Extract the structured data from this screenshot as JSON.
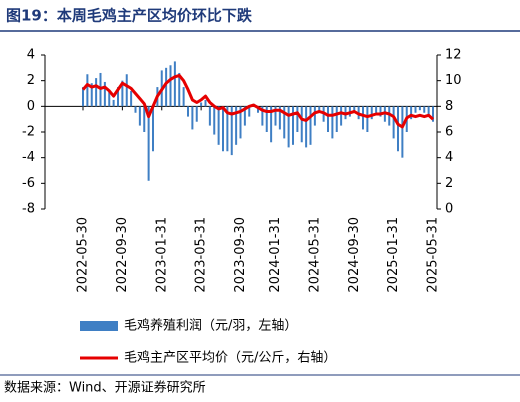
{
  "title": "图19：本周毛鸡主产区均价环比下跌",
  "source": "数据来源：Wind、开源证券研究所",
  "chart_data": {
    "type": "bar-line",
    "categories": [
      "2022-05-30",
      null,
      null,
      null,
      null,
      null,
      null,
      null,
      null,
      "2022-09-30",
      null,
      null,
      null,
      null,
      null,
      null,
      null,
      null,
      "2023-01-31",
      null,
      null,
      null,
      null,
      null,
      null,
      null,
      null,
      "2023-05-31",
      null,
      null,
      null,
      null,
      null,
      null,
      null,
      null,
      "2023-09-30",
      null,
      null,
      null,
      null,
      null,
      null,
      null,
      "2024-01-31",
      null,
      null,
      null,
      null,
      null,
      null,
      null,
      null,
      "2024-05-31",
      null,
      null,
      null,
      null,
      null,
      null,
      null,
      null,
      "2024-09-30",
      null,
      null,
      null,
      null,
      null,
      null,
      null,
      null,
      "2025-01-31",
      null,
      null,
      null,
      null,
      null,
      null,
      null,
      null,
      "2025-05-31"
    ],
    "series": [
      {
        "name": "毛鸡养殖利润（元/羽，左轴）",
        "color": "#3f7fc4",
        "type": "bar",
        "axis": "y",
        "values": [
          1.5,
          2.5,
          1.8,
          2.2,
          2.6,
          1.9,
          1.2,
          0.5,
          1.5,
          2.0,
          2.5,
          1.2,
          -0.5,
          -1.5,
          -2.0,
          -5.8,
          -3.5,
          1.5,
          2.8,
          3.0,
          3.2,
          3.5,
          2.6,
          1.5,
          -0.8,
          -1.8,
          -1.2,
          0.3,
          0.5,
          -1.5,
          -2.2,
          -3.0,
          -3.5,
          -3.5,
          -3.8,
          -3.0,
          -2.5,
          -1.5,
          -0.8,
          0.2,
          -0.5,
          -1.5,
          -2.0,
          -2.8,
          -1.5,
          -1.8,
          -2.5,
          -3.2,
          -3.0,
          -2.0,
          -2.8,
          -3.2,
          -3.0,
          -1.5,
          -0.5,
          -1.2,
          -2.0,
          -2.5,
          -2.0,
          -1.5,
          -1.0,
          -0.8,
          -0.5,
          -1.0,
          -1.8,
          -2.0,
          -1.0,
          -0.5,
          -0.8,
          -1.2,
          -1.5,
          -2.5,
          -3.5,
          -4.0,
          -2.0,
          -1.0,
          -0.5,
          -0.3,
          -0.5,
          -0.8,
          -1.2
        ]
      },
      {
        "name": "毛鸡主产区平均价（元/公斤，右轴）",
        "color": "#e60000",
        "type": "line",
        "axis": "y2",
        "values": [
          9.3,
          9.7,
          9.5,
          9.6,
          9.4,
          9.5,
          9.2,
          8.8,
          9.3,
          9.8,
          9.6,
          9.4,
          9.0,
          8.6,
          8.2,
          7.2,
          8.0,
          8.8,
          9.3,
          9.8,
          10.1,
          10.3,
          10.4,
          10.0,
          9.3,
          8.5,
          8.3,
          8.5,
          8.8,
          8.3,
          8.0,
          7.8,
          7.9,
          7.5,
          7.4,
          7.5,
          7.6,
          7.8,
          8.0,
          8.1,
          7.9,
          7.7,
          7.6,
          7.6,
          7.7,
          7.7,
          7.5,
          7.3,
          7.4,
          7.5,
          7.0,
          6.9,
          7.2,
          7.5,
          7.6,
          7.5,
          7.3,
          7.3,
          7.4,
          7.5,
          7.4,
          7.5,
          7.6,
          7.4,
          7.3,
          7.2,
          7.3,
          7.4,
          7.4,
          7.5,
          7.4,
          7.2,
          6.6,
          6.4,
          7.1,
          7.3,
          7.2,
          7.3,
          7.2,
          7.3,
          7.0
        ]
      }
    ],
    "ylim": [
      -8,
      4
    ],
    "yticks": [
      -8,
      -6,
      -4,
      -2,
      0,
      2,
      4
    ],
    "y2lim": [
      0,
      12
    ],
    "y2ticks": [
      0,
      2,
      4,
      6,
      8,
      10,
      12
    ]
  }
}
